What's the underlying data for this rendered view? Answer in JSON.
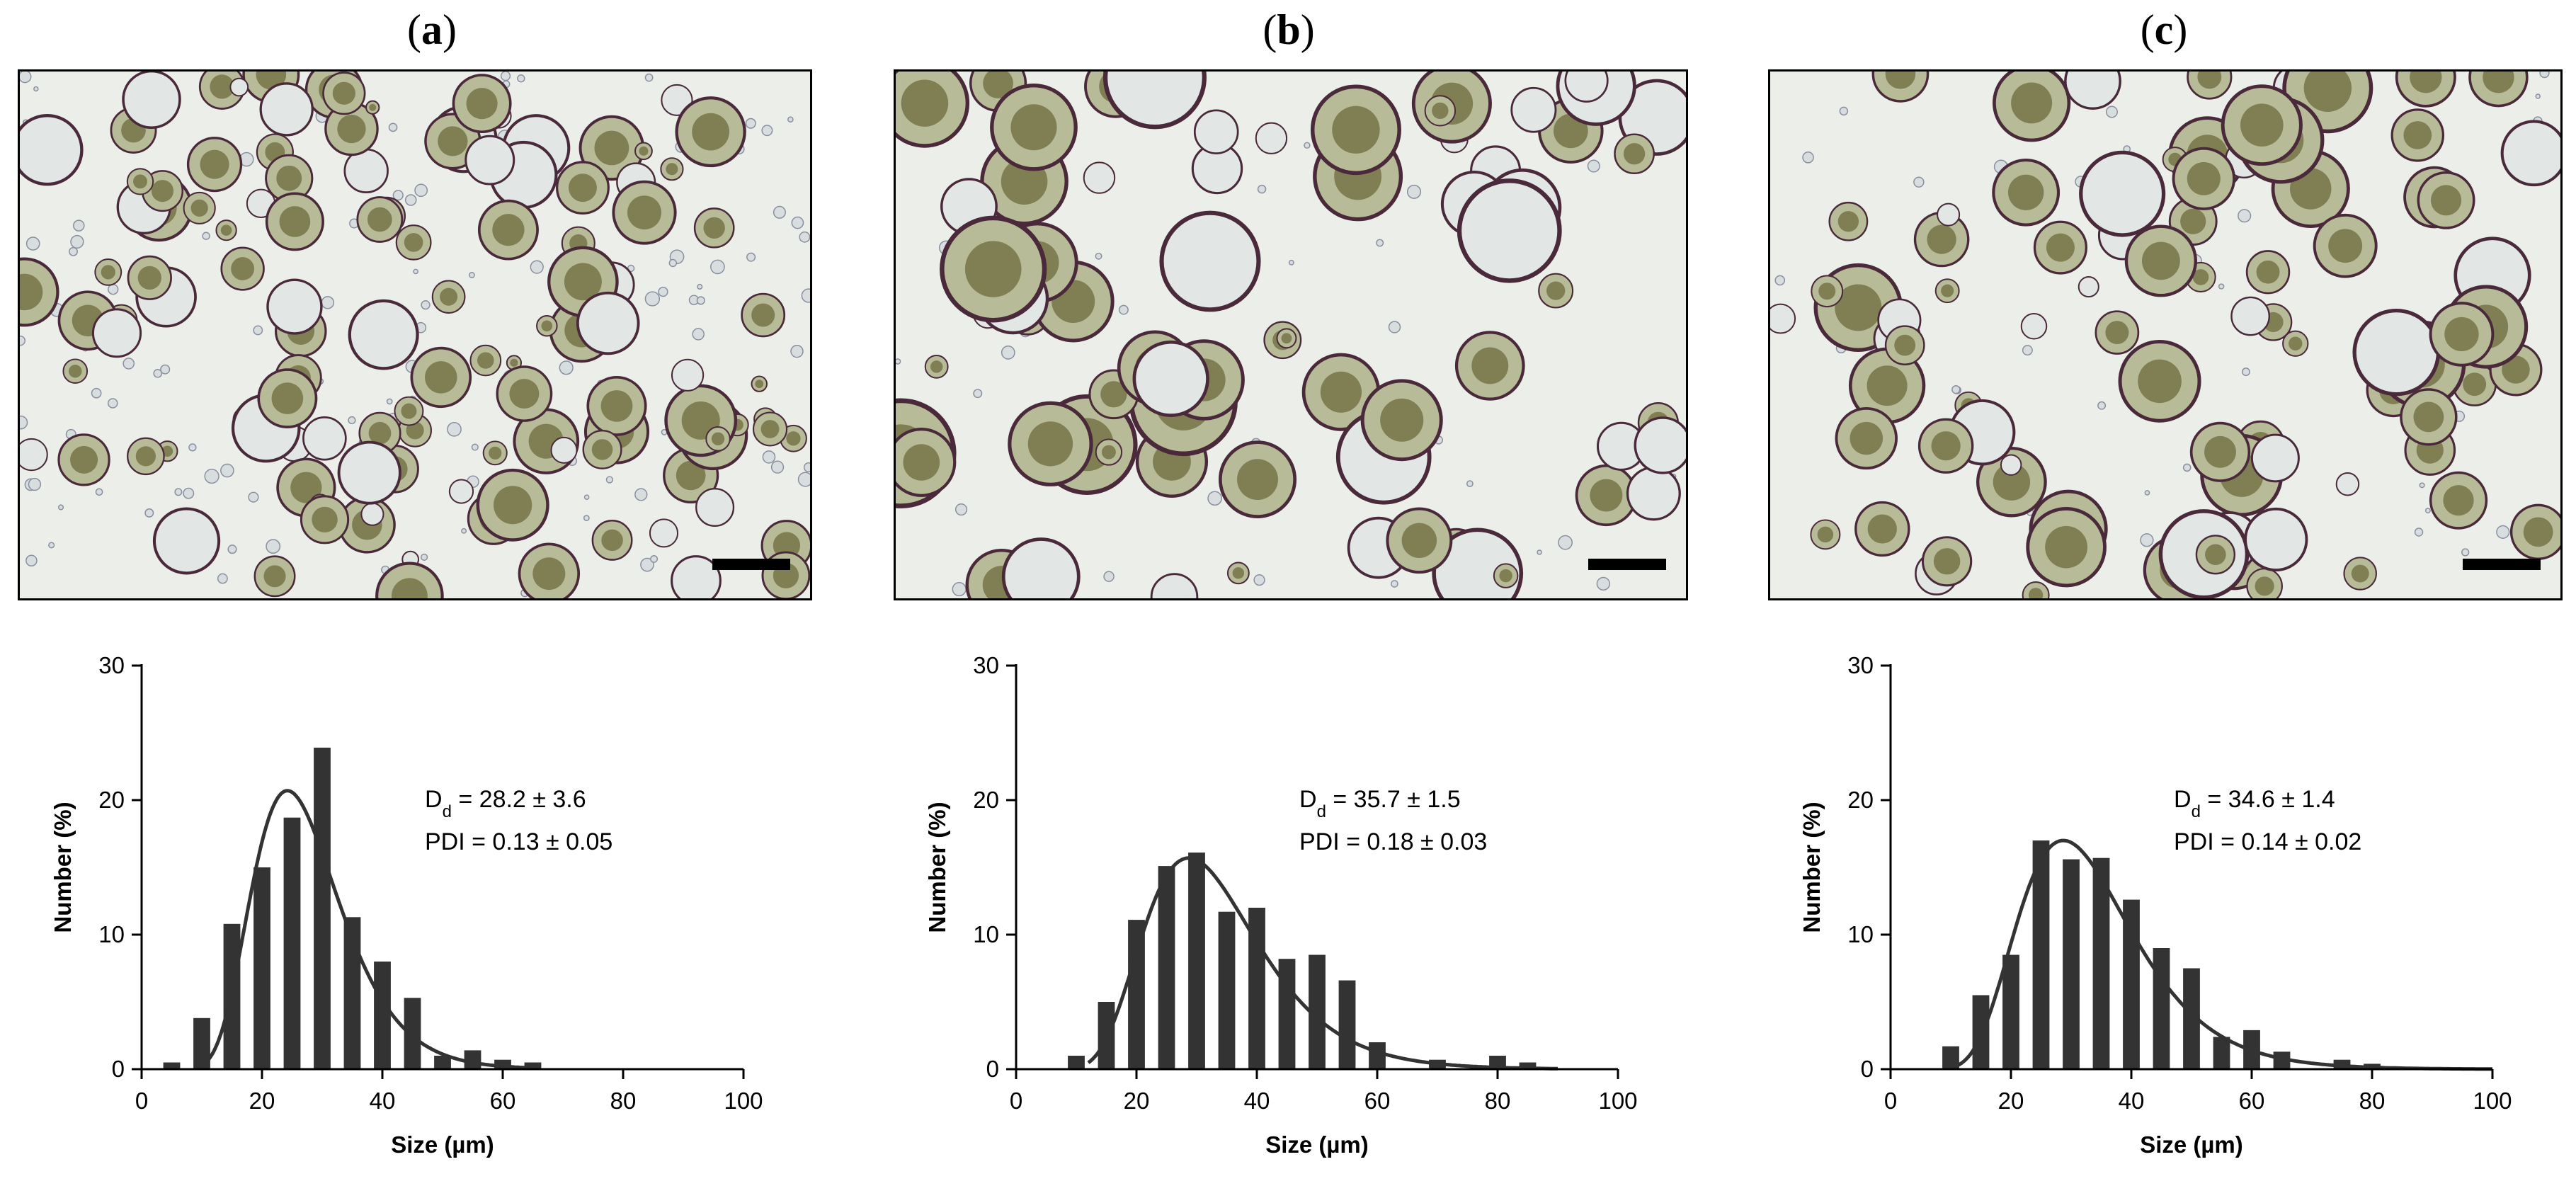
{
  "colors": {
    "bar": "#333333",
    "curve": "#333333",
    "axis": "#000000",
    "micro_bg": "#ecefe9"
  },
  "panels": [
    {
      "label_letter": "a",
      "sub_d": "d",
      "dd_value": " = 28.2 ± 3.6",
      "pdi": "PDI = 0.13 ± 0.05"
    },
    {
      "label_letter": "b",
      "sub_d": "d",
      "dd_value": " = 35.7 ± 1.5",
      "pdi": "PDI = 0.18 ± 0.03"
    },
    {
      "label_letter": "c",
      "sub_d": "d",
      "dd_value": " = 34.6 ± 1.4",
      "pdi": "PDI = 0.14 ± 0.02"
    }
  ],
  "chart_data": [
    {
      "type": "bar",
      "xlabel": "Size (µm)",
      "ylabel": "Number (%)",
      "xlim": [
        0,
        100
      ],
      "ylim": [
        0,
        30
      ],
      "xticks": [
        0,
        20,
        40,
        60,
        80,
        100
      ],
      "yticks": [
        0,
        10,
        20,
        30
      ],
      "x": [
        5,
        10,
        15,
        20,
        25,
        30,
        35,
        40,
        45,
        50,
        55,
        60,
        65
      ],
      "values": [
        0.5,
        3.8,
        10.8,
        15.0,
        18.7,
        23.9,
        11.3,
        8.0,
        5.3,
        1.0,
        1.4,
        0.7,
        0.5
      ],
      "fit": {
        "type": "lognormal",
        "median": 26.5,
        "sigma": 0.3,
        "peak": 20.7,
        "xrange": [
          10,
          65
        ]
      },
      "grid": false
    },
    {
      "type": "bar",
      "xlabel": "Size (µm)",
      "ylabel": "Number (%)",
      "xlim": [
        0,
        100
      ],
      "ylim": [
        0,
        30
      ],
      "xticks": [
        0,
        20,
        40,
        60,
        80,
        100
      ],
      "yticks": [
        0,
        10,
        20,
        30
      ],
      "x": [
        10,
        15,
        20,
        25,
        30,
        35,
        40,
        45,
        50,
        55,
        60,
        70,
        80,
        85
      ],
      "values": [
        1.0,
        5.0,
        11.1,
        15.1,
        16.1,
        11.7,
        12.0,
        8.2,
        8.5,
        6.6,
        2.0,
        0.7,
        1.0,
        0.5
      ],
      "fit": {
        "type": "lognormal",
        "median": 32,
        "sigma": 0.33,
        "peak": 15.7,
        "xrange": [
          12,
          90
        ]
      },
      "grid": false
    },
    {
      "type": "bar",
      "xlabel": "Size (µm)",
      "ylabel": "Number (%)",
      "xlim": [
        0,
        100
      ],
      "ylim": [
        0,
        30
      ],
      "xticks": [
        0,
        20,
        40,
        60,
        80,
        100
      ],
      "yticks": [
        0,
        10,
        20,
        30
      ],
      "x": [
        10,
        15,
        20,
        25,
        30,
        35,
        40,
        45,
        50,
        55,
        60,
        65,
        75,
        80
      ],
      "values": [
        1.7,
        5.5,
        8.5,
        17.0,
        15.6,
        15.7,
        12.6,
        9.0,
        7.5,
        2.4,
        2.9,
        1.3,
        0.7,
        0.4
      ],
      "fit": {
        "type": "lognormal",
        "median": 32,
        "sigma": 0.33,
        "peak": 17.0,
        "xrange": [
          10,
          100
        ]
      },
      "grid": false
    }
  ]
}
